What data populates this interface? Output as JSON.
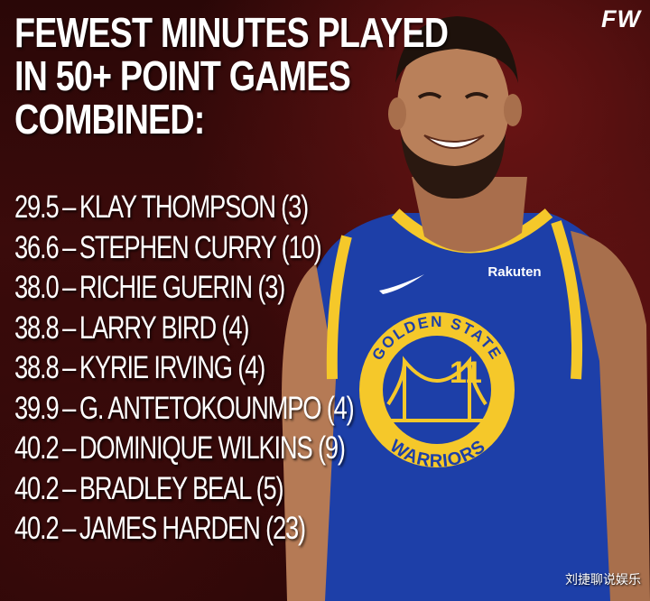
{
  "headline": {
    "line1": "FEWEST MINUTES PLAYED",
    "line2": "IN 50+ POINT GAMES",
    "line3": "COMBINED:"
  },
  "stats": [
    {
      "minutes": "29.5",
      "player": "KLAY THOMPSON",
      "games": "(3)"
    },
    {
      "minutes": "36.6",
      "player": "STEPHEN CURRY",
      "games": "(10)"
    },
    {
      "minutes": "38.0",
      "player": "RICHIE GUERIN",
      "games": "(3)"
    },
    {
      "minutes": "38.8",
      "player": "LARRY BIRD",
      "games": "(4)"
    },
    {
      "minutes": "38.8",
      "player": "KYRIE IRVING",
      "games": "(4)"
    },
    {
      "minutes": "39.9",
      "player": "G. ANTETOKOUNMPO",
      "games": "(4)"
    },
    {
      "minutes": "40.2",
      "player": "DOMINIQUE WILKINS",
      "games": "(9)"
    },
    {
      "minutes": "40.2",
      "player": "BRADLEY BEAL",
      "games": "(5)"
    },
    {
      "minutes": "40.2",
      "player": "JAMES HARDEN",
      "games": "(23)"
    }
  ],
  "separator": "–",
  "brand_logo": "FW",
  "jersey": {
    "sponsor": "Rakuten",
    "arc_top": "GOLDEN STATE",
    "arc_bottom": "WARRIORS",
    "number": "11"
  },
  "watermark": "刘捷聊说娱乐",
  "colors": {
    "jersey_blue": "#1d3fa8",
    "trim_gold": "#f5c82a",
    "background_red": "#3b0b0b",
    "text": "#ffffff"
  }
}
